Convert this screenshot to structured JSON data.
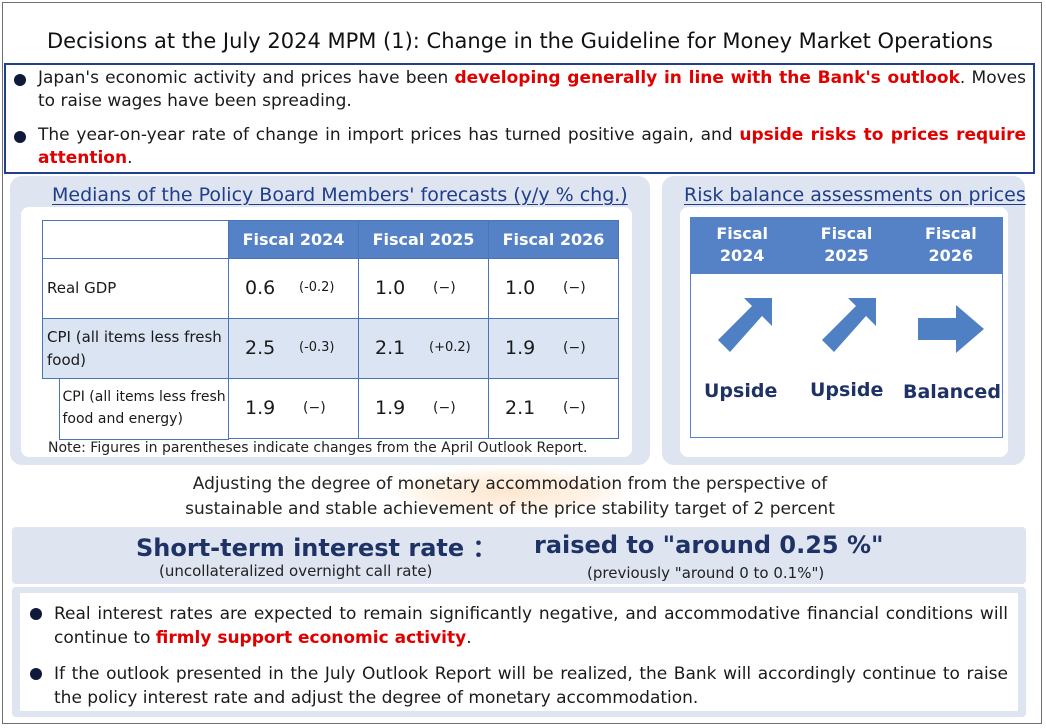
{
  "title": "Decisions at the July 2024 MPM (1): Change in the Guideline for Money Market Operations",
  "top_bullets": [
    {
      "pre": "Japan's economic activity and prices have been ",
      "highlight": "developing generally in line with the Bank's outlook",
      "post": ". Moves to raise wages have been spreading."
    },
    {
      "pre": "The year-on-year rate of change in import prices has turned positive again, and ",
      "highlight": "upside risks to prices require attention",
      "post": "."
    }
  ],
  "forecast": {
    "heading": "Medians of the Policy Board Members' forecasts (y/y % chg.)",
    "columns": [
      "Fiscal 2024",
      "Fiscal 2025",
      "Fiscal 2026"
    ],
    "rows": [
      {
        "label": "Real GDP",
        "cells": [
          {
            "value": "0.6",
            "change": "(-0.2)"
          },
          {
            "value": "1.0",
            "change": "(−)"
          },
          {
            "value": "1.0",
            "change": "(−)"
          }
        ]
      },
      {
        "label": "CPI (all items less fresh food)",
        "cells": [
          {
            "value": "2.5",
            "change": "(-0.3)"
          },
          {
            "value": "2.1",
            "change": "(+0.2)"
          },
          {
            "value": "1.9",
            "change": "(−)"
          }
        ]
      },
      {
        "label": "CPI (all items less fresh food and energy)",
        "cells": [
          {
            "value": "1.9",
            "change": "(−)"
          },
          {
            "value": "1.9",
            "change": "(−)"
          },
          {
            "value": "2.1",
            "change": "(−)"
          }
        ]
      }
    ],
    "note": "Note: Figures in parentheses indicate changes from the April Outlook Report."
  },
  "risk": {
    "heading": "Risk balance assessments on prices",
    "columns": [
      {
        "line1": "Fiscal",
        "line2": "2024",
        "assessment": "Upside",
        "arrow_icon": "arrow-up-right-icon"
      },
      {
        "line1": "Fiscal",
        "line2": "2025",
        "assessment": "Upside",
        "arrow_icon": "arrow-up-right-icon"
      },
      {
        "line1": "Fiscal",
        "line2": "2026",
        "assessment": "Balanced",
        "arrow_icon": "arrow-right-icon"
      }
    ],
    "arrow_color": "#4e80c3"
  },
  "adjust": {
    "line1": "Adjusting the degree of monetary accommodation from the perspective of",
    "line2": "sustainable and stable achievement of the price stability target of 2 percent"
  },
  "rate": {
    "label": "Short-term interest rate ：",
    "sublabel": "(uncollateralized overnight call rate)",
    "decision": "raised to \"around 0.25 %\"",
    "previous": "(previously \"around 0 to 0.1%\")"
  },
  "bottom_bullets": [
    {
      "pre": "Real interest rates are expected to remain significantly negative, and accommodative financial conditions will continue to ",
      "highlight": "firmly support economic activity",
      "post": "."
    },
    {
      "pre": "If the outlook presented in the July Outlook Report will be realized, the Bank will accordingly continue to raise the policy interest rate and adjust the degree of monetary accommodation.",
      "highlight": "",
      "post": ""
    }
  ],
  "colors": {
    "accent_blue": "#1f3f8f",
    "header_blue": "#5582c6",
    "panel_bg": "#dee5f0",
    "highlight_red": "#e00000"
  }
}
